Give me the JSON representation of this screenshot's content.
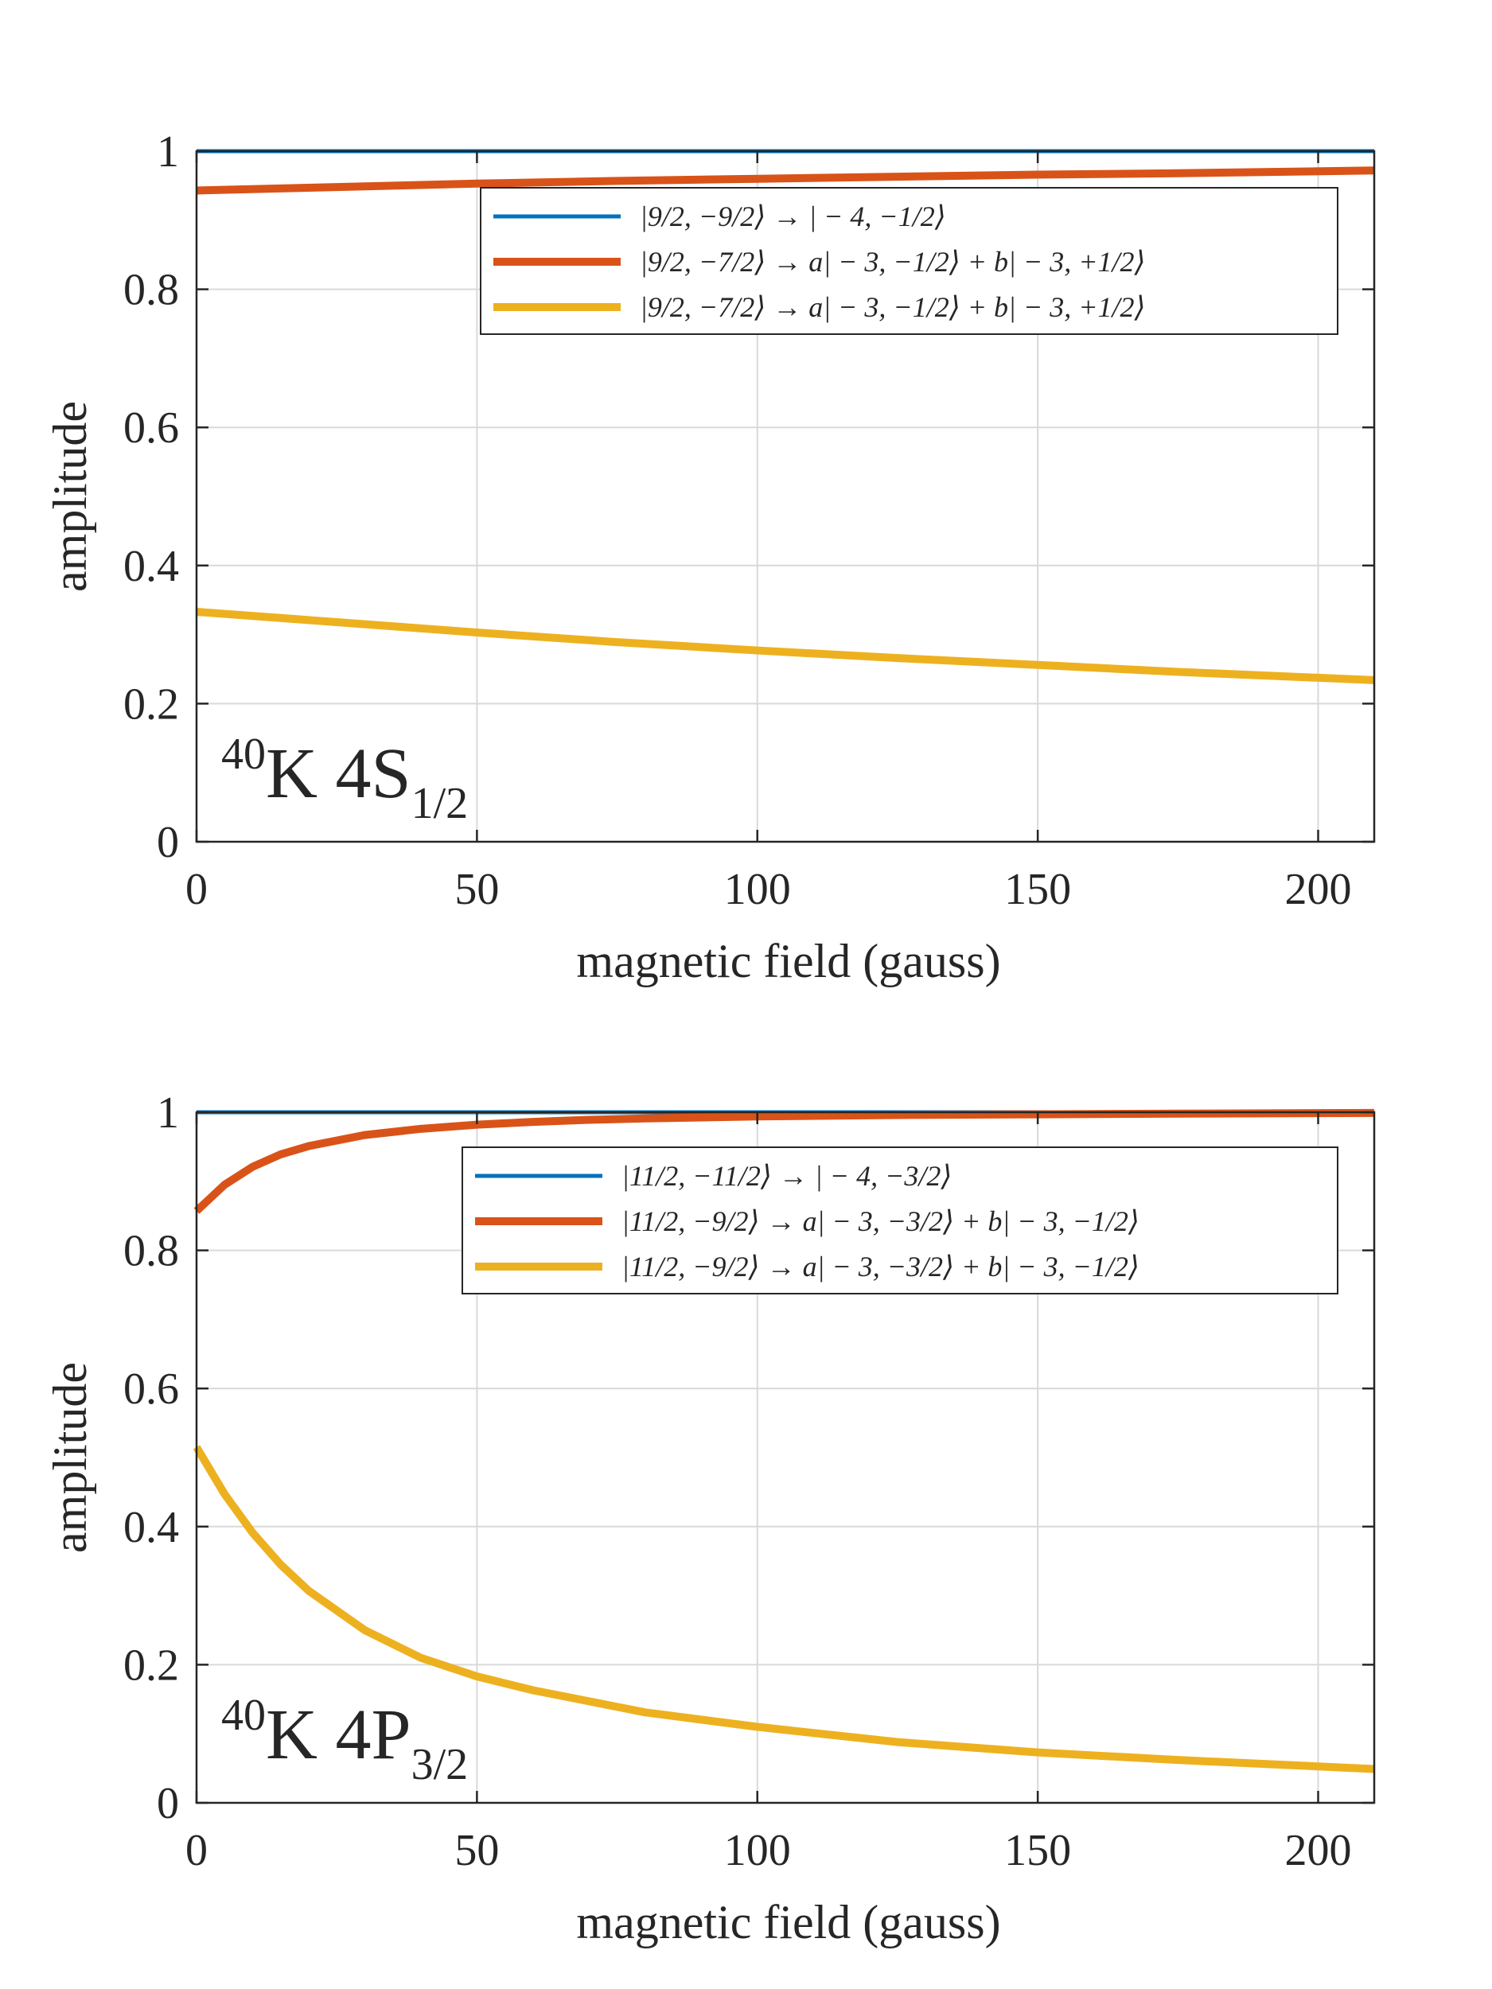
{
  "chart_data": [
    {
      "type": "line",
      "xlabel": "magnetic field (gauss)",
      "ylabel": "amplitude",
      "xlim": [
        0,
        210
      ],
      "ylim": [
        0,
        1
      ],
      "xticks": [
        0,
        50,
        100,
        150,
        200
      ],
      "yticks": [
        0,
        0.2,
        0.4,
        0.6,
        0.8,
        1
      ],
      "xtick_labels": [
        "0",
        "50",
        "100",
        "150",
        "200"
      ],
      "ytick_labels": [
        "0",
        "0.2",
        "0.4",
        "0.6",
        "0.8",
        "1"
      ],
      "grid": true,
      "legend_position": "top-right",
      "annotation": {
        "sup": "40",
        "main": "K 4S",
        "sub": "1/2"
      },
      "series": [
        {
          "name": "|9/2, −9/2⟩ → | − 4, −1/2⟩",
          "color": "#0072BD",
          "x": [
            0,
            50,
            100,
            150,
            210
          ],
          "values": [
            1,
            1,
            1,
            1,
            1
          ]
        },
        {
          "name": "|9/2, −7/2⟩ → a| − 3, −1/2⟩ + b| − 3, +1/2⟩",
          "color": "#D95319",
          "x": [
            0,
            25,
            50,
            75,
            100,
            125,
            150,
            175,
            210
          ],
          "values": [
            0.943,
            0.948,
            0.953,
            0.957,
            0.96,
            0.963,
            0.966,
            0.968,
            0.972
          ]
        },
        {
          "name": "|9/2, −7/2⟩ → a| − 3, −1/2⟩ + b| − 3, +1/2⟩",
          "color": "#EDB120",
          "x": [
            0,
            25,
            50,
            75,
            100,
            125,
            150,
            175,
            210
          ],
          "values": [
            0.333,
            0.318,
            0.303,
            0.289,
            0.277,
            0.266,
            0.256,
            0.246,
            0.234
          ]
        }
      ]
    },
    {
      "type": "line",
      "xlabel": "magnetic field (gauss)",
      "ylabel": "amplitude",
      "xlim": [
        0,
        210
      ],
      "ylim": [
        0,
        1
      ],
      "xticks": [
        0,
        50,
        100,
        150,
        200
      ],
      "yticks": [
        0,
        0.2,
        0.4,
        0.6,
        0.8,
        1
      ],
      "xtick_labels": [
        "0",
        "50",
        "100",
        "150",
        "200"
      ],
      "ytick_labels": [
        "0",
        "0.2",
        "0.4",
        "0.6",
        "0.8",
        "1"
      ],
      "grid": true,
      "legend_position": "top-right",
      "annotation": {
        "sup": "40",
        "main": "K 4P",
        "sub": "3/2"
      },
      "series": [
        {
          "name": "|11/2, −11/2⟩ → | − 4, −3/2⟩",
          "color": "#0072BD",
          "x": [
            0,
            50,
            100,
            150,
            210
          ],
          "values": [
            1,
            1,
            1,
            1,
            1
          ]
        },
        {
          "name": "|11/2, −9/2⟩ → a| − 3, −3/2⟩ + b| − 3, −1/2⟩",
          "color": "#D95319",
          "x": [
            0,
            5,
            10,
            15,
            20,
            30,
            40,
            50,
            60,
            70,
            80,
            100,
            125,
            150,
            175,
            210
          ],
          "values": [
            0.857,
            0.895,
            0.921,
            0.939,
            0.951,
            0.967,
            0.976,
            0.982,
            0.986,
            0.989,
            0.991,
            0.994,
            0.996,
            0.997,
            0.998,
            0.999
          ]
        },
        {
          "name": "|11/2, −9/2⟩ → a| − 3, −3/2⟩ + b| − 3, −1/2⟩",
          "color": "#EDB120",
          "x": [
            0,
            5,
            10,
            15,
            20,
            30,
            40,
            50,
            60,
            70,
            80,
            100,
            125,
            150,
            175,
            210
          ],
          "values": [
            0.515,
            0.447,
            0.391,
            0.345,
            0.307,
            0.25,
            0.21,
            0.183,
            0.163,
            0.147,
            0.131,
            0.11,
            0.088,
            0.073,
            0.062,
            0.049
          ]
        }
      ]
    }
  ]
}
